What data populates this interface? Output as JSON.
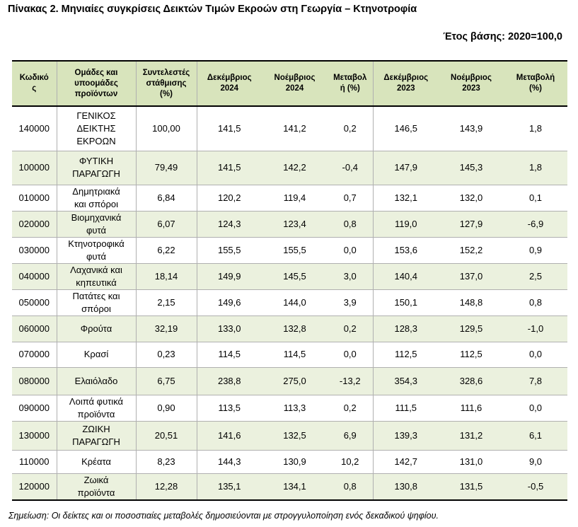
{
  "title": "Πίνακας 2. Μηνιαίες συγκρίσεις Δεικτών Τιμών Εκροών στη Γεωργία – Κτηνοτροφία",
  "base_year": "Έτος βάσης: 2020=100,0",
  "headers": [
    "Κωδικό\nς",
    "Ομάδες και\nυποομάδες\nπροϊόντων",
    "Συντελεστές\nστάθμισης\n(%)",
    "Δεκέμβριος\n2024",
    "Νοέμβριος\n2024",
    "Μεταβολ\nή (%)",
    "Δεκέμβριος\n2023",
    "Νοέμβριος\n2023",
    "Μεταβολή\n(%)"
  ],
  "rows": [
    [
      "140000",
      "ΓΕΝΙΚΟΣ\nΔΕΙΚΤΗΣ\nΕΚΡΟΩΝ",
      "100,00",
      "141,5",
      "141,2",
      "0,2",
      "146,5",
      "143,9",
      "1,8"
    ],
    [
      "100000",
      "ΦΥΤΙΚΗ\nΠΑΡΑΓΩΓΗ",
      "79,49",
      "141,5",
      "142,2",
      "-0,4",
      "147,9",
      "145,3",
      "1,8"
    ],
    [
      "010000",
      "Δημητριακά\nκαι σπόροι",
      "6,84",
      "120,2",
      "119,4",
      "0,7",
      "132,1",
      "132,0",
      "0,1"
    ],
    [
      "020000",
      "Βιομηχανικά\nφυτά",
      "6,07",
      "124,3",
      "123,4",
      "0,8",
      "119,0",
      "127,9",
      "-6,9"
    ],
    [
      "030000",
      "Κτηνοτροφικά\nφυτά",
      "6,22",
      "155,5",
      "155,5",
      "0,0",
      "153,6",
      "152,2",
      "0,9"
    ],
    [
      "040000",
      "Λαχανικά και\nκηπευτικά",
      "18,14",
      "149,9",
      "145,5",
      "3,0",
      "140,4",
      "137,0",
      "2,5"
    ],
    [
      "050000",
      "Πατάτες και\nσπόροι",
      "2,15",
      "149,6",
      "144,0",
      "3,9",
      "150,1",
      "148,8",
      "0,8"
    ],
    [
      "060000",
      "Φρούτα",
      "32,19",
      "133,0",
      "132,8",
      "0,2",
      "128,3",
      "129,5",
      "-1,0"
    ],
    [
      "070000",
      "Κρασί",
      "0,23",
      "114,5",
      "114,5",
      "0,0",
      "112,5",
      "112,5",
      "0,0"
    ],
    [
      "080000",
      "Ελαιόλαδο",
      "6,75",
      "238,8",
      "275,0",
      "-13,2",
      "354,3",
      "328,6",
      "7,8"
    ],
    [
      "090000",
      "Λοιπά φυτικά\nπροϊόντα",
      "0,90",
      "113,5",
      "113,3",
      "0,2",
      "111,5",
      "111,6",
      "0,0"
    ],
    [
      "130000",
      "ΖΩΙΚΗ\nΠΑΡΑΓΩΓΗ",
      "20,51",
      "141,6",
      "132,5",
      "6,9",
      "139,3",
      "131,2",
      "6,1"
    ],
    [
      "110000",
      "Κρέατα",
      "8,23",
      "144,3",
      "130,9",
      "10,2",
      "142,7",
      "131,0",
      "9,0"
    ],
    [
      "120000",
      "Ζωικά\nπροϊόντα",
      "12,28",
      "135,1",
      "134,1",
      "0,8",
      "130,8",
      "131,5",
      "-0,5"
    ]
  ],
  "row_shaded": [
    false,
    true,
    false,
    true,
    false,
    true,
    false,
    true,
    false,
    true,
    false,
    true,
    false,
    true
  ],
  "note": "Σημείωση: Οι δείκτες και οι ποσοστιαίες μεταβολές δημοσιεύονται με στρογγυλοποίηση ενός δεκαδικού ψηφίου.",
  "colors": {
    "header_fill": "#d8e4bc",
    "band_fill": "#ebf1de",
    "rule": "#000000",
    "grid": "#b0b0b0"
  }
}
